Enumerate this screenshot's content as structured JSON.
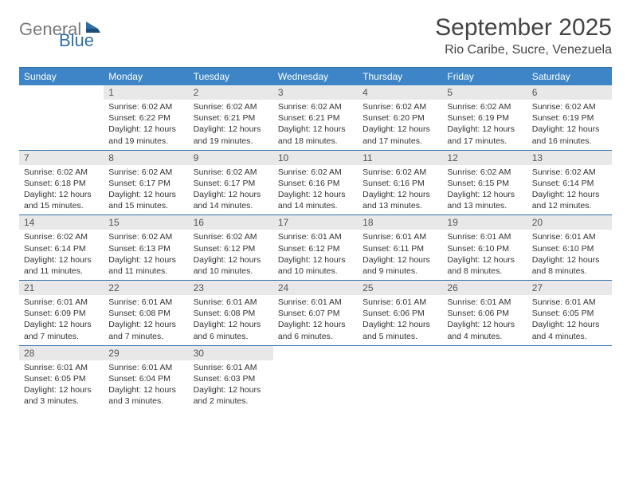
{
  "logo": {
    "word1": "General",
    "word2": "Blue",
    "color1": "#7a7a7a",
    "color2": "#2f6fa8"
  },
  "title": "September 2025",
  "location": "Rio Caribe, Sucre, Venezuela",
  "colors": {
    "header_bg": "#3d85c6",
    "header_text": "#ffffff",
    "border": "#2f6fa8",
    "daynum_bg": "#e8e8e8",
    "text": "#333333"
  },
  "days_of_week": [
    "Sunday",
    "Monday",
    "Tuesday",
    "Wednesday",
    "Thursday",
    "Friday",
    "Saturday"
  ],
  "weeks": [
    [
      {
        "n": "",
        "sunrise": "",
        "sunset": "",
        "daylight": ""
      },
      {
        "n": "1",
        "sunrise": "Sunrise: 6:02 AM",
        "sunset": "Sunset: 6:22 PM",
        "daylight": "Daylight: 12 hours and 19 minutes."
      },
      {
        "n": "2",
        "sunrise": "Sunrise: 6:02 AM",
        "sunset": "Sunset: 6:21 PM",
        "daylight": "Daylight: 12 hours and 19 minutes."
      },
      {
        "n": "3",
        "sunrise": "Sunrise: 6:02 AM",
        "sunset": "Sunset: 6:21 PM",
        "daylight": "Daylight: 12 hours and 18 minutes."
      },
      {
        "n": "4",
        "sunrise": "Sunrise: 6:02 AM",
        "sunset": "Sunset: 6:20 PM",
        "daylight": "Daylight: 12 hours and 17 minutes."
      },
      {
        "n": "5",
        "sunrise": "Sunrise: 6:02 AM",
        "sunset": "Sunset: 6:19 PM",
        "daylight": "Daylight: 12 hours and 17 minutes."
      },
      {
        "n": "6",
        "sunrise": "Sunrise: 6:02 AM",
        "sunset": "Sunset: 6:19 PM",
        "daylight": "Daylight: 12 hours and 16 minutes."
      }
    ],
    [
      {
        "n": "7",
        "sunrise": "Sunrise: 6:02 AM",
        "sunset": "Sunset: 6:18 PM",
        "daylight": "Daylight: 12 hours and 15 minutes."
      },
      {
        "n": "8",
        "sunrise": "Sunrise: 6:02 AM",
        "sunset": "Sunset: 6:17 PM",
        "daylight": "Daylight: 12 hours and 15 minutes."
      },
      {
        "n": "9",
        "sunrise": "Sunrise: 6:02 AM",
        "sunset": "Sunset: 6:17 PM",
        "daylight": "Daylight: 12 hours and 14 minutes."
      },
      {
        "n": "10",
        "sunrise": "Sunrise: 6:02 AM",
        "sunset": "Sunset: 6:16 PM",
        "daylight": "Daylight: 12 hours and 14 minutes."
      },
      {
        "n": "11",
        "sunrise": "Sunrise: 6:02 AM",
        "sunset": "Sunset: 6:16 PM",
        "daylight": "Daylight: 12 hours and 13 minutes."
      },
      {
        "n": "12",
        "sunrise": "Sunrise: 6:02 AM",
        "sunset": "Sunset: 6:15 PM",
        "daylight": "Daylight: 12 hours and 13 minutes."
      },
      {
        "n": "13",
        "sunrise": "Sunrise: 6:02 AM",
        "sunset": "Sunset: 6:14 PM",
        "daylight": "Daylight: 12 hours and 12 minutes."
      }
    ],
    [
      {
        "n": "14",
        "sunrise": "Sunrise: 6:02 AM",
        "sunset": "Sunset: 6:14 PM",
        "daylight": "Daylight: 12 hours and 11 minutes."
      },
      {
        "n": "15",
        "sunrise": "Sunrise: 6:02 AM",
        "sunset": "Sunset: 6:13 PM",
        "daylight": "Daylight: 12 hours and 11 minutes."
      },
      {
        "n": "16",
        "sunrise": "Sunrise: 6:02 AM",
        "sunset": "Sunset: 6:12 PM",
        "daylight": "Daylight: 12 hours and 10 minutes."
      },
      {
        "n": "17",
        "sunrise": "Sunrise: 6:01 AM",
        "sunset": "Sunset: 6:12 PM",
        "daylight": "Daylight: 12 hours and 10 minutes."
      },
      {
        "n": "18",
        "sunrise": "Sunrise: 6:01 AM",
        "sunset": "Sunset: 6:11 PM",
        "daylight": "Daylight: 12 hours and 9 minutes."
      },
      {
        "n": "19",
        "sunrise": "Sunrise: 6:01 AM",
        "sunset": "Sunset: 6:10 PM",
        "daylight": "Daylight: 12 hours and 8 minutes."
      },
      {
        "n": "20",
        "sunrise": "Sunrise: 6:01 AM",
        "sunset": "Sunset: 6:10 PM",
        "daylight": "Daylight: 12 hours and 8 minutes."
      }
    ],
    [
      {
        "n": "21",
        "sunrise": "Sunrise: 6:01 AM",
        "sunset": "Sunset: 6:09 PM",
        "daylight": "Daylight: 12 hours and 7 minutes."
      },
      {
        "n": "22",
        "sunrise": "Sunrise: 6:01 AM",
        "sunset": "Sunset: 6:08 PM",
        "daylight": "Daylight: 12 hours and 7 minutes."
      },
      {
        "n": "23",
        "sunrise": "Sunrise: 6:01 AM",
        "sunset": "Sunset: 6:08 PM",
        "daylight": "Daylight: 12 hours and 6 minutes."
      },
      {
        "n": "24",
        "sunrise": "Sunrise: 6:01 AM",
        "sunset": "Sunset: 6:07 PM",
        "daylight": "Daylight: 12 hours and 6 minutes."
      },
      {
        "n": "25",
        "sunrise": "Sunrise: 6:01 AM",
        "sunset": "Sunset: 6:06 PM",
        "daylight": "Daylight: 12 hours and 5 minutes."
      },
      {
        "n": "26",
        "sunrise": "Sunrise: 6:01 AM",
        "sunset": "Sunset: 6:06 PM",
        "daylight": "Daylight: 12 hours and 4 minutes."
      },
      {
        "n": "27",
        "sunrise": "Sunrise: 6:01 AM",
        "sunset": "Sunset: 6:05 PM",
        "daylight": "Daylight: 12 hours and 4 minutes."
      }
    ],
    [
      {
        "n": "28",
        "sunrise": "Sunrise: 6:01 AM",
        "sunset": "Sunset: 6:05 PM",
        "daylight": "Daylight: 12 hours and 3 minutes."
      },
      {
        "n": "29",
        "sunrise": "Sunrise: 6:01 AM",
        "sunset": "Sunset: 6:04 PM",
        "daylight": "Daylight: 12 hours and 3 minutes."
      },
      {
        "n": "30",
        "sunrise": "Sunrise: 6:01 AM",
        "sunset": "Sunset: 6:03 PM",
        "daylight": "Daylight: 12 hours and 2 minutes."
      },
      {
        "n": "",
        "sunrise": "",
        "sunset": "",
        "daylight": ""
      },
      {
        "n": "",
        "sunrise": "",
        "sunset": "",
        "daylight": ""
      },
      {
        "n": "",
        "sunrise": "",
        "sunset": "",
        "daylight": ""
      },
      {
        "n": "",
        "sunrise": "",
        "sunset": "",
        "daylight": ""
      }
    ]
  ]
}
